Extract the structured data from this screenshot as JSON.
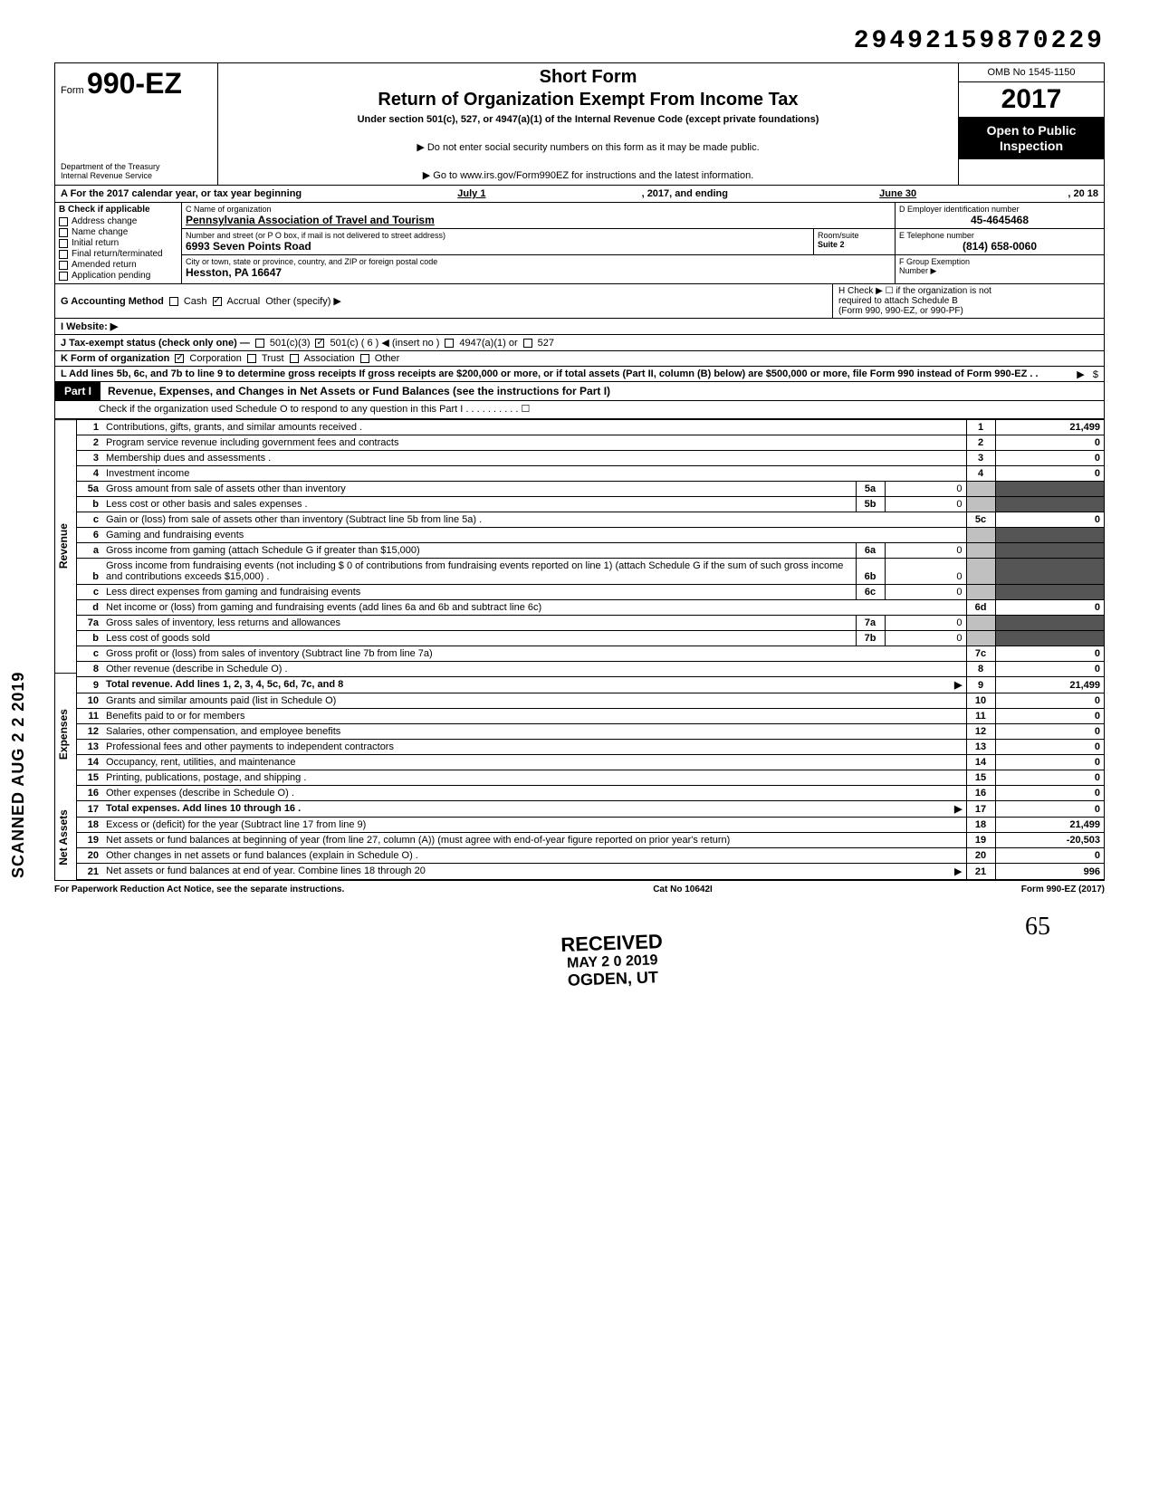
{
  "top_number": "29492159870229",
  "header": {
    "form_prefix": "Form",
    "form_number": "990-EZ",
    "dept1": "Department of the Treasury",
    "dept2": "Internal Revenue Service",
    "short_form": "Short Form",
    "return_title": "Return of Organization Exempt From Income Tax",
    "under_section": "Under section 501(c), 527, or 4947(a)(1) of the Internal Revenue Code (except private foundations)",
    "note1": "▶ Do not enter social security numbers on this form as it may be made public.",
    "note2": "▶ Go to www.irs.gov/Form990EZ for instructions and the latest information.",
    "omb": "OMB No 1545-1150",
    "year": "2017",
    "open_public1": "Open to Public",
    "open_public2": "Inspection"
  },
  "row_a": {
    "label": "A For the 2017 calendar year, or tax year beginning",
    "begin": "July 1",
    "mid": ", 2017, and ending",
    "end": "June 30",
    "yr": ", 20   18"
  },
  "section_b": {
    "head": "B Check if applicable",
    "items": [
      "Address change",
      "Name change",
      "Initial return",
      "Final return/terminated",
      "Amended return",
      "Application pending"
    ]
  },
  "section_c": {
    "name_label": "C Name of organization",
    "name_value": "Pennsylvania Association of Travel and Tourism",
    "addr_label": "Number and street (or P O box, if mail is not delivered to street address)",
    "addr_value": "6993 Seven Points Road",
    "room_label": "Room/suite",
    "room_value": "Suite 2",
    "city_label": "City or town, state or province, country, and ZIP or foreign postal code",
    "city_value": "Hesston, PA 16647"
  },
  "section_de": {
    "d_label": "D Employer identification number",
    "d_value": "45-4645468",
    "e_label": "E Telephone number",
    "e_value": "(814) 658-0060",
    "f_label": "F Group Exemption",
    "f_label2": "Number ▶"
  },
  "row_g": {
    "label": "G Accounting Method",
    "cash": "Cash",
    "accrual": "Accrual",
    "other": "Other (specify) ▶"
  },
  "row_h": {
    "text1": "H Check ▶ ☐ if the organization is not",
    "text2": "required to attach Schedule B",
    "text3": "(Form 990, 990-EZ, or 990-PF)"
  },
  "row_i": {
    "label": "I  Website: ▶"
  },
  "row_j": {
    "label": "J Tax-exempt status (check only one) —",
    "opt1": "501(c)(3)",
    "opt2": "501(c) (  6  ) ◀ (insert no )",
    "opt3": "4947(a)(1) or",
    "opt4": "527"
  },
  "row_k": {
    "label": "K Form of organization",
    "opt1": "Corporation",
    "opt2": "Trust",
    "opt3": "Association",
    "opt4": "Other"
  },
  "row_l": {
    "text": "L Add lines 5b, 6c, and 7b to line 9 to determine gross receipts If gross receipts are $200,000 or more, or if total assets (Part II, column (B) below) are $500,000 or more, file Form 990 instead of Form 990-EZ . ."
  },
  "part1": {
    "label": "Part I",
    "title": "Revenue, Expenses, and Changes in Net Assets or Fund Balances (see the instructions for Part I)",
    "sub": "Check if the organization used Schedule O to respond to any question in this Part I . . . . . . . . . . ☐"
  },
  "sides": {
    "revenue": "Revenue",
    "expenses": "Expenses",
    "netassets": "Net Assets"
  },
  "lines": [
    {
      "n": "1",
      "desc": "Contributions, gifts, grants, and similar amounts received .",
      "ln": "1",
      "amt": "21,499"
    },
    {
      "n": "2",
      "desc": "Program service revenue including government fees and contracts",
      "ln": "2",
      "amt": "0"
    },
    {
      "n": "3",
      "desc": "Membership dues and assessments .",
      "ln": "3",
      "amt": "0"
    },
    {
      "n": "4",
      "desc": "Investment income",
      "ln": "4",
      "amt": "0"
    },
    {
      "n": "5a",
      "desc": "Gross amount from sale of assets other than inventory",
      "sub": "5a",
      "subamt": "0"
    },
    {
      "n": "b",
      "desc": "Less cost or other basis and sales expenses .",
      "sub": "5b",
      "subamt": "0"
    },
    {
      "n": "c",
      "desc": "Gain or (loss) from sale of assets other than inventory (Subtract line 5b from line 5a) .",
      "ln": "5c",
      "amt": "0"
    },
    {
      "n": "6",
      "desc": "Gaming and fundraising events"
    },
    {
      "n": "a",
      "desc": "Gross income from gaming (attach Schedule G if greater than $15,000)",
      "sub": "6a",
      "subamt": "0"
    },
    {
      "n": "b",
      "desc": "Gross income from fundraising events (not including  $                    0 of contributions from fundraising events reported on line 1) (attach Schedule G if the sum of such gross income and contributions exceeds $15,000) .",
      "sub": "6b",
      "subamt": "0"
    },
    {
      "n": "c",
      "desc": "Less direct expenses from gaming and fundraising events",
      "sub": "6c",
      "subamt": "0"
    },
    {
      "n": "d",
      "desc": "Net income or (loss) from gaming and fundraising events (add lines 6a and 6b and subtract line 6c)",
      "ln": "6d",
      "amt": "0"
    },
    {
      "n": "7a",
      "desc": "Gross sales of inventory, less returns and allowances",
      "sub": "7a",
      "subamt": "0"
    },
    {
      "n": "b",
      "desc": "Less cost of goods sold",
      "sub": "7b",
      "subamt": "0"
    },
    {
      "n": "c",
      "desc": "Gross profit or (loss) from sales of inventory (Subtract line 7b from line 7a)",
      "ln": "7c",
      "amt": "0"
    },
    {
      "n": "8",
      "desc": "Other revenue (describe in Schedule O) .",
      "ln": "8",
      "amt": "0"
    },
    {
      "n": "9",
      "desc": "Total revenue. Add lines 1, 2, 3, 4, 5c, 6d, 7c, and 8",
      "ln": "9",
      "amt": "21,499",
      "bold": true,
      "arrow": true
    },
    {
      "n": "10",
      "desc": "Grants and similar amounts paid (list in Schedule O)",
      "ln": "10",
      "amt": "0"
    },
    {
      "n": "11",
      "desc": "Benefits paid to or for members",
      "ln": "11",
      "amt": "0"
    },
    {
      "n": "12",
      "desc": "Salaries, other compensation, and employee benefits",
      "ln": "12",
      "amt": "0"
    },
    {
      "n": "13",
      "desc": "Professional fees and other payments to independent contractors",
      "ln": "13",
      "amt": "0"
    },
    {
      "n": "14",
      "desc": "Occupancy, rent, utilities, and maintenance",
      "ln": "14",
      "amt": "0"
    },
    {
      "n": "15",
      "desc": "Printing, publications, postage, and shipping .",
      "ln": "15",
      "amt": "0"
    },
    {
      "n": "16",
      "desc": "Other expenses (describe in Schedule O) .",
      "ln": "16",
      "amt": "0"
    },
    {
      "n": "17",
      "desc": "Total expenses. Add lines 10 through 16 .",
      "ln": "17",
      "amt": "0",
      "bold": true,
      "arrow": true
    },
    {
      "n": "18",
      "desc": "Excess or (deficit) for the year (Subtract line 17 from line 9)",
      "ln": "18",
      "amt": "21,499"
    },
    {
      "n": "19",
      "desc": "Net assets or fund balances at beginning of year (from line 27, column (A)) (must agree with end-of-year figure reported on prior year's return)",
      "ln": "19",
      "amt": "-20,503"
    },
    {
      "n": "20",
      "desc": "Other changes in net assets or fund balances (explain in Schedule O) .",
      "ln": "20",
      "amt": "0"
    },
    {
      "n": "21",
      "desc": "Net assets or fund balances at end of year. Combine lines 18 through 20",
      "ln": "21",
      "amt": "996",
      "arrow": true
    }
  ],
  "stamps": {
    "received": "RECEIVED",
    "date": "MAY 2 0 2019",
    "ogden": "OGDEN, UT",
    "scanned": "SCANNED AUG 2 2 2019"
  },
  "footer": {
    "left": "For Paperwork Reduction Act Notice, see the separate instructions.",
    "center": "Cat No 10642I",
    "right": "Form 990-EZ (2017)"
  },
  "handwrite": "65",
  "colors": {
    "black": "#000000",
    "shade": "#c0c0c0",
    "dark": "#555555"
  }
}
